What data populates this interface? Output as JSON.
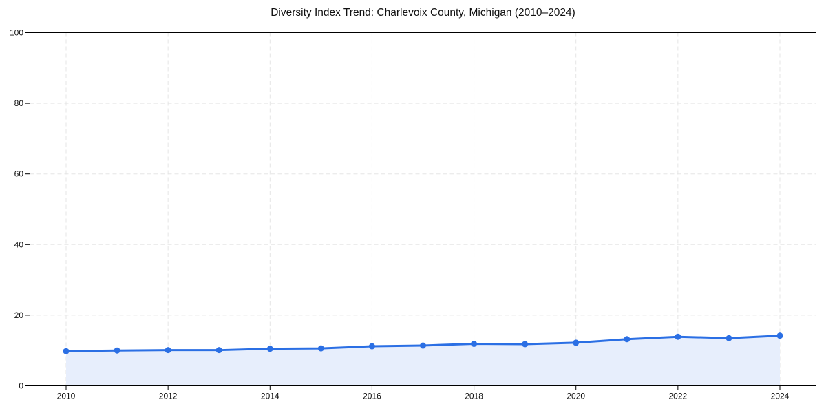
{
  "chart_data": {
    "type": "line",
    "title": "Diversity Index Trend: Charlevoix County, Michigan (2010–2024)",
    "x": [
      2010,
      2011,
      2012,
      2013,
      2014,
      2015,
      2016,
      2017,
      2018,
      2019,
      2020,
      2021,
      2022,
      2023,
      2024
    ],
    "values": [
      9.8,
      10.0,
      10.1,
      10.1,
      10.5,
      10.6,
      11.2,
      11.4,
      11.9,
      11.8,
      12.2,
      13.2,
      13.9,
      13.5,
      14.2
    ],
    "xticks": [
      2010,
      2012,
      2014,
      2016,
      2018,
      2020,
      2022,
      2024
    ],
    "yticks": [
      0,
      20,
      40,
      60,
      80,
      100
    ],
    "ylim": [
      0,
      100
    ],
    "xlabel": "",
    "ylabel": "",
    "grid": true,
    "grid_style": "dashed",
    "legend": false,
    "area_fill": true,
    "marker": "circle",
    "colors": {
      "line": "#2b6fe4",
      "marker": "#2b6fe4",
      "area": "#e7eefc",
      "grid": "#e5e5e5",
      "axis": "#000000",
      "text": "#111111"
    }
  }
}
